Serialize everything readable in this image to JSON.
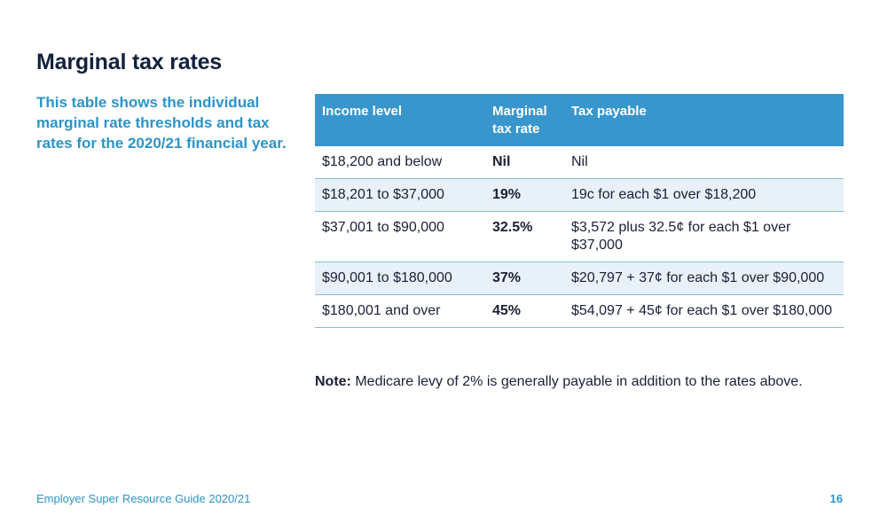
{
  "page": {
    "title": "Marginal tax rates",
    "intro": "This table shows the individual marginal rate thresholds and tax rates for the 2020/21 financial year."
  },
  "table": {
    "headers": {
      "income": "Income level",
      "rate": "Marginal tax rate",
      "payable": "Tax payable"
    },
    "rows": [
      {
        "income": "$18,200 and below",
        "rate": "Nil",
        "payable": "Nil"
      },
      {
        "income": "$18,201 to $37,000",
        "rate": "19%",
        "payable": "19c for each $1 over $18,200"
      },
      {
        "income": "$37,001 to $90,000",
        "rate": "32.5%",
        "payable": "$3,572 plus 32.5¢ for each $1 over $37,000"
      },
      {
        "income": "$90,001 to $180,000",
        "rate": "37%",
        "payable": "$20,797 + 37¢ for each $1 over $90,000"
      },
      {
        "income": "$180,001 and over",
        "rate": "45%",
        "payable": "$54,097 + 45¢ for each $1 over $180,000"
      }
    ]
  },
  "note": {
    "label": "Note:",
    "text": " Medicare levy of 2% is generally payable in addition to the rates above."
  },
  "footer": {
    "guide": "Employer Super Resource Guide 2020/21",
    "page_number": "16"
  },
  "colors": {
    "title": "#13213c",
    "accent": "#2d93c8",
    "header_bg": "#3996cd",
    "row_shade": "#e8f1f8",
    "divider": "#7fbde0"
  }
}
